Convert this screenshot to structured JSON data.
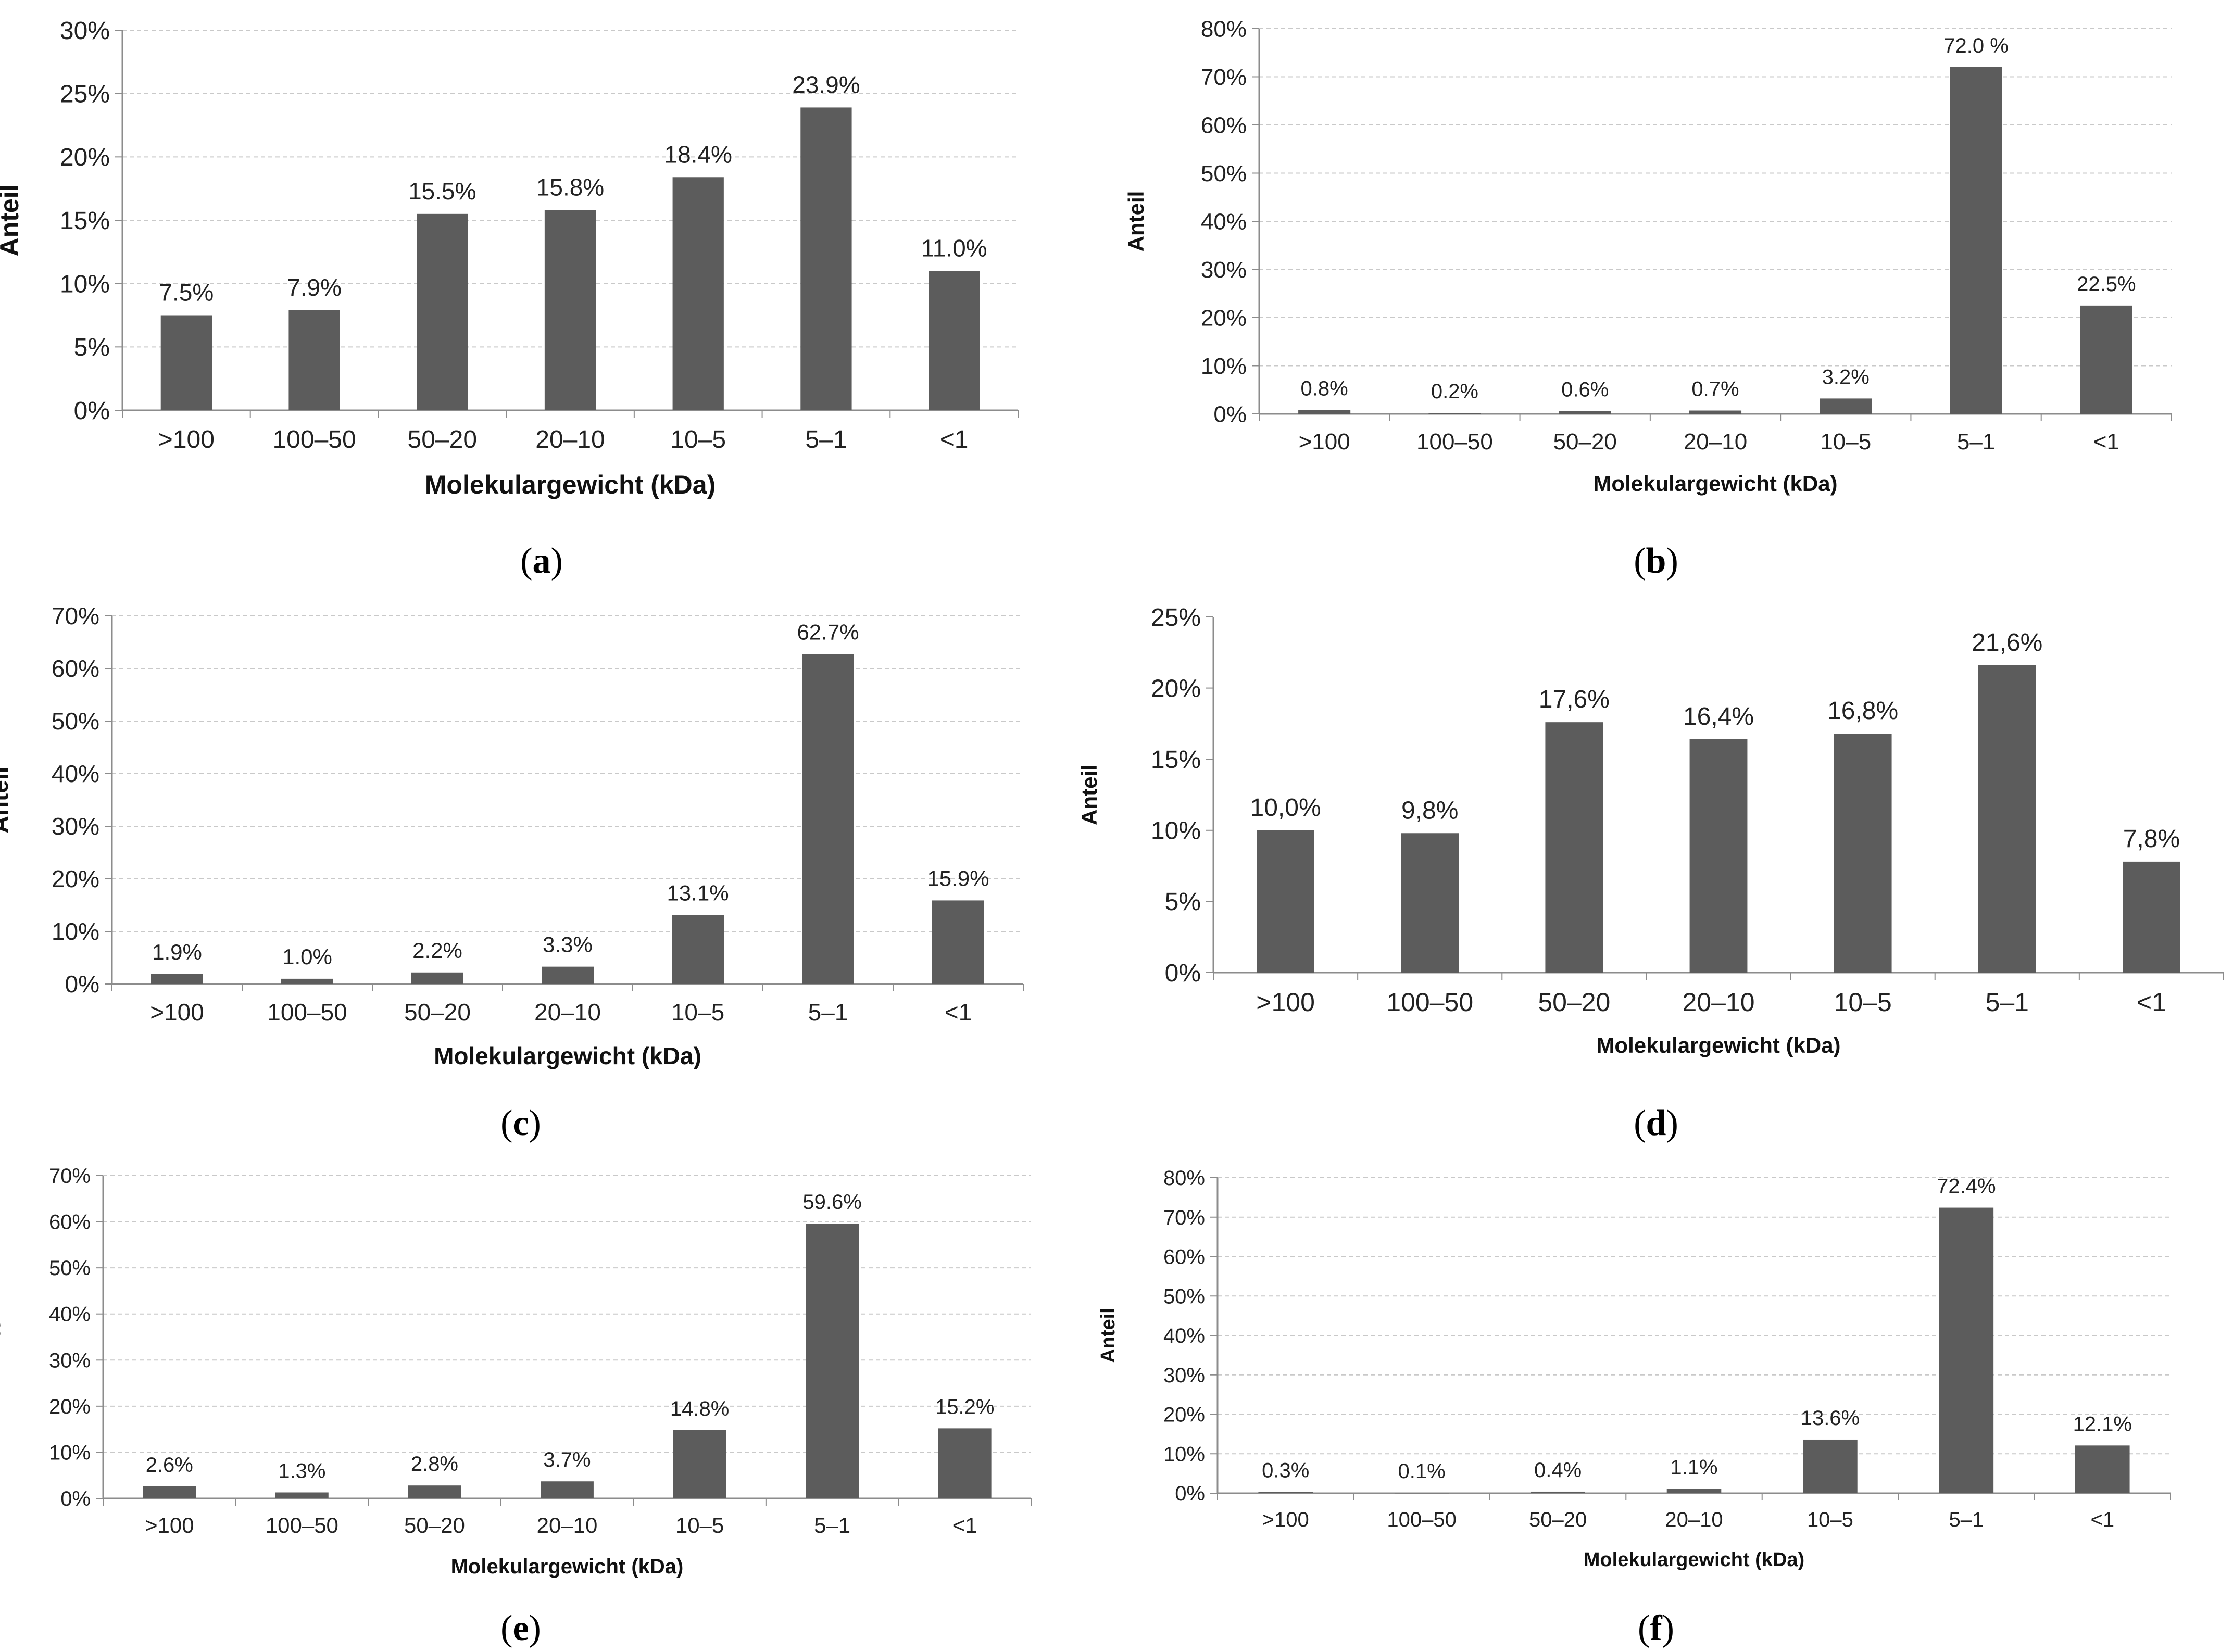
{
  "colors": {
    "bar": "#5c5c5c",
    "grid": "#c9c9c9",
    "axis": "#8c8c8c",
    "text": "#222222",
    "background": "#ffffff"
  },
  "chart_data": [
    {
      "panel": "a",
      "type": "bar",
      "categories": [
        ">100",
        "100–50",
        "50–20",
        "20–10",
        "10–5",
        "5–1",
        "<1"
      ],
      "values": [
        7.5,
        7.9,
        15.5,
        15.8,
        18.4,
        23.9,
        11.0
      ],
      "data_labels": [
        "7.5%",
        "7.9%",
        "15.5%",
        "15.8%",
        "18.4%",
        "23.9%",
        "11.0%"
      ],
      "xlabel": "Molekulargewicht (kDa)",
      "ylabel": "Anteil",
      "ylim": [
        0,
        30
      ],
      "yticks": [
        "0%",
        "5%",
        "10%",
        "15%",
        "20%",
        "25%",
        "30%"
      ],
      "grid": true,
      "caption": {
        "open": "(",
        "letter": "a",
        "close": ")"
      }
    },
    {
      "panel": "b",
      "type": "bar",
      "categories": [
        ">100",
        "100–50",
        "50–20",
        "20–10",
        "10–5",
        "5–1",
        "<1"
      ],
      "values": [
        0.8,
        0.2,
        0.6,
        0.7,
        3.2,
        72.0,
        22.5
      ],
      "data_labels": [
        "0.8%",
        "0.2%",
        "0.6%",
        "0.7%",
        "3.2%",
        "72.0 %",
        "22.5%"
      ],
      "xlabel": "Molekulargewicht (kDa)",
      "ylabel": "Anteil",
      "ylim": [
        0,
        80
      ],
      "yticks": [
        "0%",
        "10%",
        "20%",
        "30%",
        "40%",
        "50%",
        "60%",
        "70%",
        "80%"
      ],
      "grid": true,
      "caption": {
        "open": "(",
        "letter": "b",
        "close": ")"
      }
    },
    {
      "panel": "c",
      "type": "bar",
      "categories": [
        ">100",
        "100–50",
        "50–20",
        "20–10",
        "10–5",
        "5–1",
        "<1"
      ],
      "values": [
        1.9,
        1.0,
        2.2,
        3.3,
        13.1,
        62.7,
        15.9
      ],
      "data_labels": [
        "1.9%",
        "1.0%",
        "2.2%",
        "3.3%",
        "13.1%",
        "62.7%",
        "15.9%"
      ],
      "xlabel": "Molekulargewicht (kDa)",
      "ylabel": "Anteil",
      "ylim": [
        0,
        70
      ],
      "yticks": [
        "0%",
        "10%",
        "20%",
        "30%",
        "40%",
        "50%",
        "60%",
        "70%"
      ],
      "grid": true,
      "caption": {
        "open": "(",
        "letter": "c",
        "close": ")"
      }
    },
    {
      "panel": "d",
      "type": "bar",
      "categories": [
        ">100",
        "100–50",
        "50–20",
        "20–10",
        "10–5",
        "5–1",
        "<1"
      ],
      "values": [
        10.0,
        9.8,
        17.6,
        16.4,
        16.8,
        21.6,
        7.8
      ],
      "data_labels": [
        "10,0%",
        "9,8%",
        "17,6%",
        "16,4%",
        "16,8%",
        "21,6%",
        "7,8%"
      ],
      "xlabel": "Molekulargewicht (kDa)",
      "ylabel": "Anteil",
      "ylim": [
        0,
        25
      ],
      "yticks": [
        "0%",
        "5%",
        "10%",
        "15%",
        "20%",
        "25%"
      ],
      "grid": false,
      "caption": {
        "open": "(",
        "letter": "d",
        "close": ")"
      }
    },
    {
      "panel": "e",
      "type": "bar",
      "categories": [
        ">100",
        "100–50",
        "50–20",
        "20–10",
        "10–5",
        "5–1",
        "<1"
      ],
      "values": [
        2.6,
        1.3,
        2.8,
        3.7,
        14.8,
        59.6,
        15.2
      ],
      "data_labels": [
        "2.6%",
        "1.3%",
        "2.8%",
        "3.7%",
        "14.8%",
        "59.6%",
        "15.2%"
      ],
      "xlabel": "Molekulargewicht (kDa)",
      "ylabel": "Anteil",
      "ylim": [
        0,
        70
      ],
      "yticks": [
        "0%",
        "10%",
        "20%",
        "30%",
        "40%",
        "50%",
        "60%",
        "70%"
      ],
      "grid": true,
      "caption": {
        "open": "(",
        "letter": "e",
        "close": ")"
      }
    },
    {
      "panel": "f",
      "type": "bar",
      "categories": [
        ">100",
        "100–50",
        "50–20",
        "20–10",
        "10–5",
        "5–1",
        "<1"
      ],
      "values": [
        0.3,
        0.1,
        0.4,
        1.1,
        13.6,
        72.4,
        12.1
      ],
      "data_labels": [
        "0.3%",
        "0.1%",
        "0.4%",
        "1.1%",
        "13.6%",
        "72.4%",
        "12.1%"
      ],
      "xlabel": "Molekulargewicht (kDa)",
      "ylabel": "Anteil",
      "ylim": [
        0,
        80
      ],
      "yticks": [
        "0%",
        "10%",
        "20%",
        "30%",
        "40%",
        "50%",
        "60%",
        "70%",
        "80%"
      ],
      "grid": true,
      "caption": {
        "open": "(",
        "letter": "f",
        "close": ")"
      }
    }
  ]
}
